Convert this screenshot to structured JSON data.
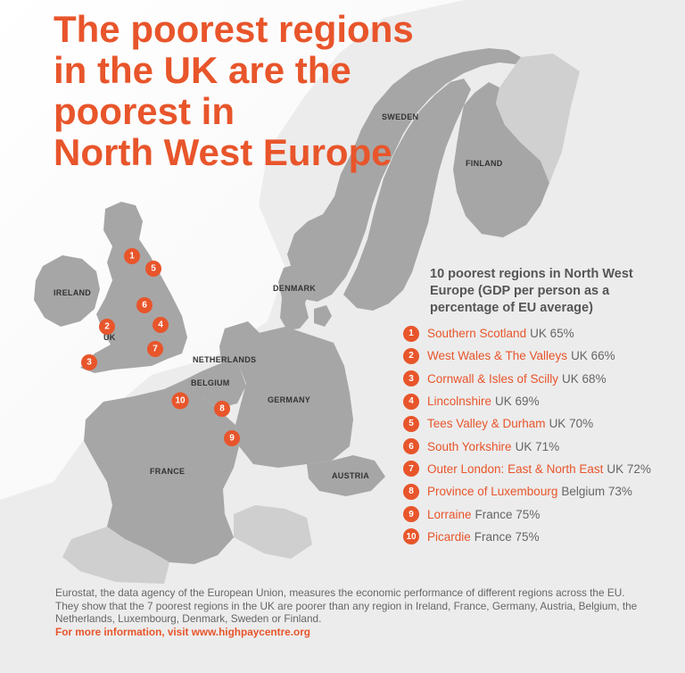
{
  "title_lines": [
    "The poorest regions",
    "in the UK are the",
    "poorest in",
    "North West Europe"
  ],
  "country_labels": {
    "sweden": "SWEDEN",
    "finland": "FINLAND",
    "denmark": "DENMARK",
    "ireland": "IRELAND",
    "uk": "UK",
    "netherlands": "NETHERLANDS",
    "belgium": "BELGIUM",
    "germany": "GERMANY",
    "france": "FRANCE",
    "austria": "AUSTRIA"
  },
  "legend": {
    "heading_lines": [
      "10 poorest regions in North West",
      "Europe (GDP per person as a",
      "percentage of EU average)"
    ],
    "items": [
      {
        "num": "1",
        "region": "Southern Scotland",
        "stat": "UK 65%"
      },
      {
        "num": "2",
        "region": "West Wales & The Valleys",
        "stat": "UK 66%"
      },
      {
        "num": "3",
        "region": "Cornwall & Isles of Scilly",
        "stat": "UK 68%"
      },
      {
        "num": "4",
        "region": "Lincolnshire",
        "stat": "UK 69%"
      },
      {
        "num": "5",
        "region": "Tees Valley & Durham",
        "stat": "UK 70%"
      },
      {
        "num": "6",
        "region": "South Yorkshire",
        "stat": "UK 71%"
      },
      {
        "num": "7",
        "region": "Outer London: East & North East",
        "stat": "UK 72%"
      },
      {
        "num": "8",
        "region": "Province of Luxembourg",
        "stat": "Belgium 73%"
      },
      {
        "num": "9",
        "region": "Lorraine",
        "stat": "France 75%"
      },
      {
        "num": "10",
        "region": "Picardie",
        "stat": "France 75%"
      }
    ]
  },
  "map_markers": [
    "1",
    "2",
    "3",
    "4",
    "5",
    "6",
    "7",
    "8",
    "9",
    "10"
  ],
  "footer": {
    "lines": [
      "Eurostat, the data agency of the European Union, measures the economic performance of different regions across the EU.",
      "They show that the 7 poorest regions in the UK are poorer than any region in Ireland, France, Germany, Austria, Belgium, the",
      "Netherlands, Luxembourg, Denmark, Sweden or Finland."
    ],
    "more_info": "For more information, visit www.highpaycentre.org"
  },
  "colors": {
    "accent": "#e8552b",
    "land": "#a6a6a6",
    "sea": "#ffffff",
    "text_gray": "#666666"
  }
}
